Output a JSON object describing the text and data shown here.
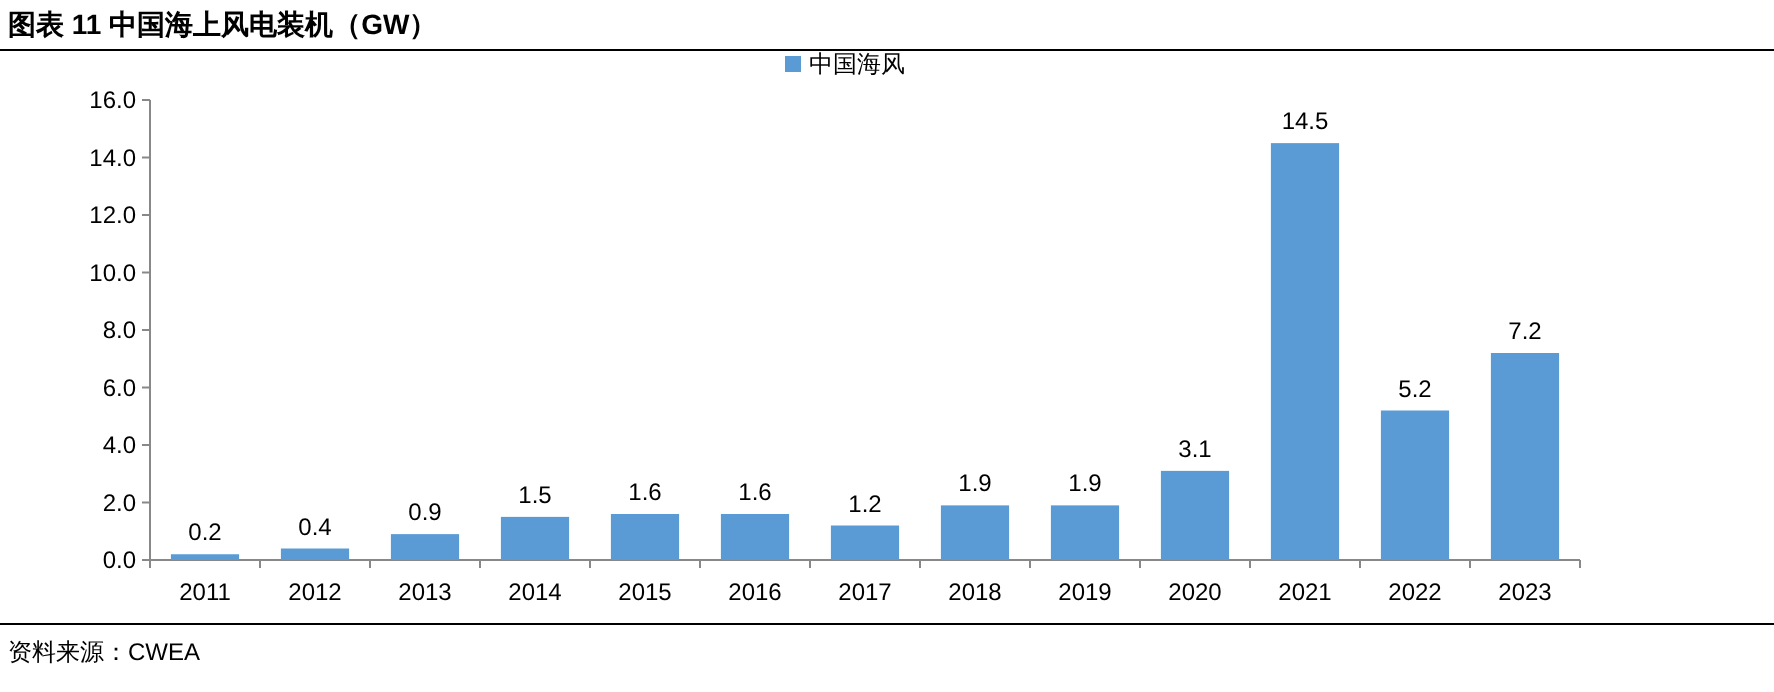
{
  "chart_data": {
    "type": "bar",
    "title": "图表 11 中国海上风电装机（GW）",
    "categories": [
      "2011",
      "2012",
      "2013",
      "2014",
      "2015",
      "2016",
      "2017",
      "2018",
      "2019",
      "2020",
      "2021",
      "2022",
      "2023"
    ],
    "series": [
      {
        "name": "中国海风",
        "color": "#5b9bd5",
        "values": [
          0.2,
          0.4,
          0.9,
          1.5,
          1.6,
          1.6,
          1.2,
          1.9,
          1.9,
          3.1,
          14.5,
          5.2,
          7.2
        ]
      }
    ],
    "ylim": [
      0,
      16
    ],
    "yticks": [
      {
        "value": 0,
        "label": "0.0"
      },
      {
        "value": 2,
        "label": "2.0"
      },
      {
        "value": 4,
        "label": "4.0"
      },
      {
        "value": 6,
        "label": "6.0"
      },
      {
        "value": 8,
        "label": "8.0"
      },
      {
        "value": 10,
        "label": "10.0"
      },
      {
        "value": 12,
        "label": "12.0"
      },
      {
        "value": 14,
        "label": "14.0"
      },
      {
        "value": 16,
        "label": "16.0"
      }
    ],
    "data_labels": true,
    "legend": "top",
    "annotations": [
      "资料来源：CWEA"
    ]
  }
}
